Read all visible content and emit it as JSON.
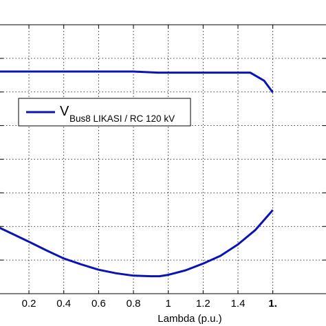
{
  "chart_data": {
    "type": "line",
    "xlabel": "Lambda (p.u.)",
    "x_ticks": [
      "0.2",
      "0.4",
      "0.6",
      "0.8",
      "1",
      "1.2",
      "1.4",
      "1."
    ],
    "xlim": [
      0.0,
      1.68
    ],
    "ylim": [
      0,
      1
    ],
    "grid": true,
    "legend": {
      "position": "upper-left",
      "main": "V",
      "subscript": "Bus8 LIKASI / RC 120 kV"
    },
    "series": [
      {
        "name": "V_Bus8 LIKASI / RC 120 kV",
        "color": "#0a14b4",
        "upper_branch": [
          {
            "x": 0.0,
            "y": 0.826
          },
          {
            "x": 0.2,
            "y": 0.826
          },
          {
            "x": 0.4,
            "y": 0.826
          },
          {
            "x": 0.6,
            "y": 0.826
          },
          {
            "x": 0.8,
            "y": 0.826
          },
          {
            "x": 0.94,
            "y": 0.822
          },
          {
            "x": 1.1,
            "y": 0.822
          },
          {
            "x": 1.3,
            "y": 0.822
          },
          {
            "x": 1.47,
            "y": 0.822
          },
          {
            "x": 1.55,
            "y": 0.792
          },
          {
            "x": 1.6,
            "y": 0.748
          }
        ],
        "lower_branch": [
          {
            "x": 0.0,
            "y": 0.255
          },
          {
            "x": 0.1,
            "y": 0.224
          },
          {
            "x": 0.2,
            "y": 0.193
          },
          {
            "x": 0.3,
            "y": 0.161
          },
          {
            "x": 0.4,
            "y": 0.131
          },
          {
            "x": 0.5,
            "y": 0.109
          },
          {
            "x": 0.6,
            "y": 0.089
          },
          {
            "x": 0.7,
            "y": 0.076
          },
          {
            "x": 0.8,
            "y": 0.067
          },
          {
            "x": 0.9,
            "y": 0.065
          },
          {
            "x": 0.95,
            "y": 0.065
          },
          {
            "x": 1.0,
            "y": 0.07
          },
          {
            "x": 1.1,
            "y": 0.087
          },
          {
            "x": 1.2,
            "y": 0.112
          },
          {
            "x": 1.3,
            "y": 0.141
          },
          {
            "x": 1.4,
            "y": 0.183
          },
          {
            "x": 1.5,
            "y": 0.237
          },
          {
            "x": 1.6,
            "y": 0.311
          }
        ]
      }
    ]
  }
}
